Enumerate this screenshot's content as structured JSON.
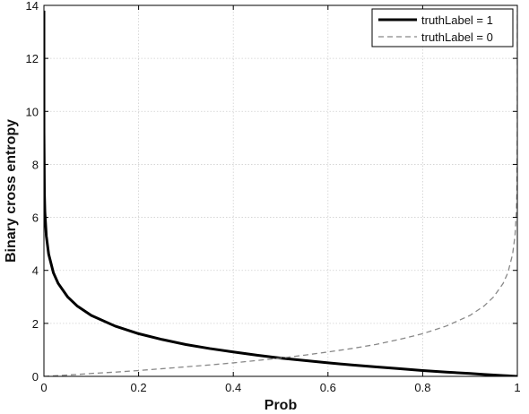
{
  "chart_data": {
    "type": "line",
    "xlabel": "Prob",
    "ylabel": "Binary cross entropy",
    "xlim": [
      0,
      1
    ],
    "ylim": [
      0,
      14
    ],
    "x_ticks": [
      0,
      0.2,
      0.4,
      0.6,
      0.8,
      1
    ],
    "x_tick_labels": [
      "0",
      "0.2",
      "0.4",
      "0.6",
      "0.8",
      "1"
    ],
    "y_ticks": [
      0,
      2,
      4,
      6,
      8,
      10,
      12,
      14
    ],
    "y_tick_labels": [
      "0",
      "2",
      "4",
      "6",
      "8",
      "10",
      "12",
      "14"
    ],
    "grid": true,
    "legend_position": "top-right",
    "x": [
      1e-06,
      1e-05,
      0.0001,
      0.001,
      0.002,
      0.005,
      0.01,
      0.02,
      0.03,
      0.05,
      0.07,
      0.1,
      0.15,
      0.2,
      0.25,
      0.3,
      0.35,
      0.4,
      0.45,
      0.5,
      0.55,
      0.6,
      0.65,
      0.7,
      0.75,
      0.8,
      0.85,
      0.9,
      0.93,
      0.95,
      0.97,
      0.98,
      0.99,
      0.995,
      0.998,
      0.999,
      0.9999,
      0.99999,
      0.999999
    ],
    "series": [
      {
        "name": "truthLabel = 1",
        "style": "solid",
        "color": "#000000",
        "values": [
          13.8,
          11.51,
          9.21,
          6.91,
          6.21,
          5.3,
          4.61,
          3.91,
          3.51,
          3.0,
          2.66,
          2.3,
          1.9,
          1.61,
          1.39,
          1.2,
          1.05,
          0.92,
          0.8,
          0.69,
          0.6,
          0.51,
          0.43,
          0.36,
          0.29,
          0.22,
          0.16,
          0.11,
          0.07,
          0.05,
          0.03,
          0.02,
          0.01,
          0.005,
          0.002,
          0.001,
          0.0001,
          1e-05,
          1e-06
        ]
      },
      {
        "name": "truthLabel = 0",
        "style": "dashed",
        "color": "#888888",
        "values": [
          1e-06,
          1e-05,
          0.0001,
          0.001,
          0.002,
          0.005,
          0.01,
          0.02,
          0.03,
          0.05,
          0.07,
          0.11,
          0.16,
          0.22,
          0.29,
          0.36,
          0.43,
          0.51,
          0.6,
          0.69,
          0.8,
          0.92,
          1.05,
          1.2,
          1.39,
          1.61,
          1.9,
          2.3,
          2.66,
          3.0,
          3.51,
          3.91,
          4.61,
          5.3,
          6.21,
          6.91,
          9.21,
          11.51,
          13.8
        ]
      }
    ]
  }
}
